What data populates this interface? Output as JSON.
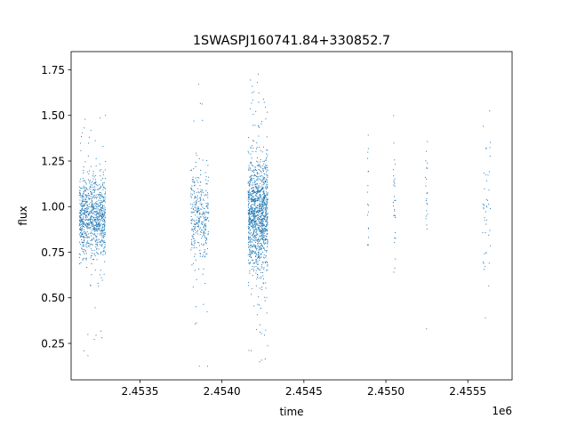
{
  "chart_data": {
    "type": "scatter",
    "title": "1SWASPJ160741.84+330852.7",
    "xlabel": "time",
    "ylabel": "flux",
    "x_offset_label": "1e6",
    "x_tick_labels": [
      "2.4535",
      "2.4540",
      "2.4545",
      "2.4550",
      "2.4555"
    ],
    "y_tick_labels": [
      "0.25",
      "0.50",
      "0.75",
      "1.00",
      "1.25",
      "1.50",
      "1.75"
    ],
    "xlim": [
      2453080,
      2455770
    ],
    "ylim": [
      0.05,
      1.85
    ],
    "grid": false,
    "legend": "none",
    "point_color": "#1f77b4",
    "series": [
      {
        "clusters": [
          {
            "x_range": [
              2453130,
              2453290
            ],
            "flux_center": 0.94,
            "flux_spread": 0.11,
            "flux_range": [
              0.16,
              1.52
            ],
            "points": 900
          },
          {
            "x_range": [
              2453810,
              2453920
            ],
            "flux_center": 0.94,
            "flux_spread": 0.13,
            "flux_range": [
              0.12,
              1.71
            ],
            "points": 330
          },
          {
            "x_range": [
              2454160,
              2454280
            ],
            "flux_center": 0.95,
            "flux_spread": 0.15,
            "flux_range": [
              0.13,
              1.73
            ],
            "points": 1200
          },
          {
            "x_range": [
              2454888,
              2454895
            ],
            "flux_center": 1.05,
            "flux_spread": 0.2,
            "flux_range": [
              0.79,
              1.67
            ],
            "points": 18
          },
          {
            "x_range": [
              2455045,
              2455060
            ],
            "flux_center": 1.05,
            "flux_spread": 0.2,
            "flux_range": [
              0.56,
              1.77
            ],
            "points": 30
          },
          {
            "x_range": [
              2455240,
              2455255
            ],
            "flux_center": 1.05,
            "flux_spread": 0.15,
            "flux_range": [
              0.26,
              1.55
            ],
            "points": 22
          },
          {
            "x_range": [
              2455590,
              2455640
            ],
            "flux_center": 1.05,
            "flux_spread": 0.22,
            "flux_range": [
              0.39,
              1.6
            ],
            "points": 45
          }
        ]
      }
    ]
  }
}
